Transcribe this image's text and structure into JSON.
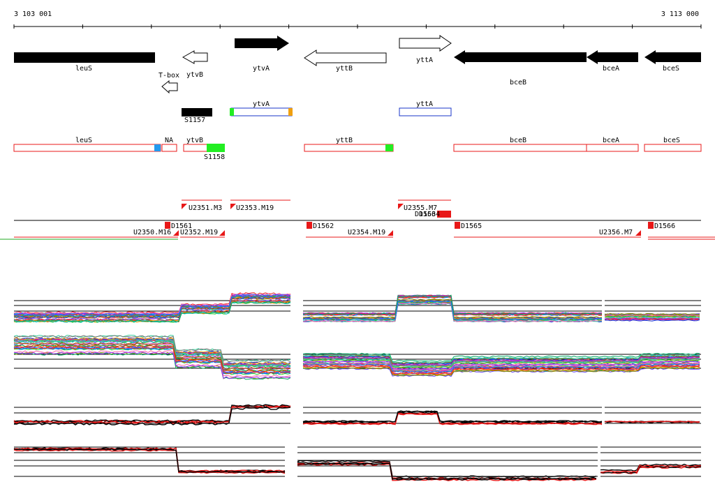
{
  "coordinates": {
    "start": "3 103 001",
    "end": "3 113 000"
  },
  "colors": {
    "black": "#000000",
    "red": "#e81818",
    "blue": "#1a36c8",
    "green": "#22ee22",
    "orange": "#f0a010",
    "cyan": "#2299ee"
  },
  "genes": [
    {
      "label": "leuS",
      "strand": "-",
      "fill": "black"
    },
    {
      "label": "ytvB",
      "strand": "-",
      "fill": "white"
    },
    {
      "label": "T-box",
      "strand": "-",
      "fill": "white"
    },
    {
      "label": "ytvA",
      "strand": "+",
      "fill": "black"
    },
    {
      "label": "yttB",
      "strand": "-",
      "fill": "white"
    },
    {
      "label": "yttA",
      "strand": "+",
      "fill": "white"
    },
    {
      "label": "bceB",
      "strand": "-",
      "fill": "black"
    },
    {
      "label": "bceA",
      "strand": "-",
      "fill": "black"
    },
    {
      "label": "bceS",
      "strand": "-",
      "fill": "black"
    }
  ],
  "features": {
    "blocks": [
      {
        "label": "S1157",
        "color": "black"
      },
      {
        "label": "S1158",
        "color": "green"
      }
    ],
    "upstream_boxes": [
      {
        "label": "ytvA"
      },
      {
        "label": "yttA"
      }
    ],
    "annotations": [
      {
        "label": "leuS"
      },
      {
        "label": "NA"
      },
      {
        "label": "ytvB"
      },
      {
        "label": "yttB"
      },
      {
        "label": "bceB"
      },
      {
        "label": "bceA"
      },
      {
        "label": "bceS"
      }
    ]
  },
  "transcripts": {
    "upstream": [
      {
        "label": "U2351.M3"
      },
      {
        "label": "U2353.M19"
      },
      {
        "label": "U2355.M7"
      }
    ],
    "downstream": [
      {
        "label": "U2350.M16"
      },
      {
        "label": "U2352.M19"
      },
      {
        "label": "U2354.M19"
      },
      {
        "label": "U2356.M7"
      }
    ],
    "markers": [
      {
        "label": "D1561"
      },
      {
        "label": "D1562"
      },
      {
        "label": "D1563"
      },
      {
        "label": "D1564"
      },
      {
        "label": "D1565"
      },
      {
        "label": "D1566"
      }
    ]
  }
}
